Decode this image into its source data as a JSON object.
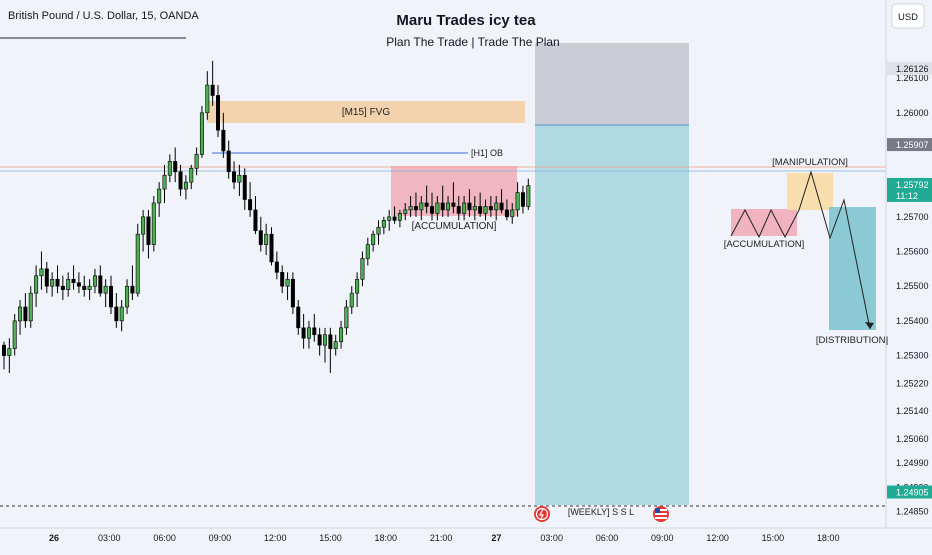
{
  "symbol_label": "British Pound / U.S. Dollar, 15, OANDA",
  "title": "Maru Trades icy tea",
  "subtitle": "Plan The Trade | Trade The Plan",
  "currency_button": "USD",
  "colors": {
    "background": "#f0f3fa",
    "up_candle": "#4caf50",
    "down_candle": "#000000",
    "fvg_zone": "#f2cda0",
    "accumulation_zone": "#f0a7b4",
    "manipulation_zone": "#f7dca3",
    "target_zone": "#a7d6e0",
    "stop_zone": "#c3c6cf",
    "price_tag_dark": "#787b86",
    "price_tag_green": "#22ab94"
  },
  "chart_data": {
    "type": "candlestick",
    "y_axis": {
      "ylim": [
        1.2482,
        1.2621
      ],
      "ticks": [
        "1.26100",
        "1.26000",
        "1.25700",
        "1.25600",
        "1.25500",
        "1.25400",
        "1.25300",
        "1.25220",
        "1.25140",
        "1.25060",
        "1.24990",
        "1.24920",
        "1.24850"
      ]
    },
    "x_axis": {
      "ticks": [
        "26",
        "03:00",
        "06:00",
        "09:00",
        "12:00",
        "15:00",
        "18:00",
        "21:00",
        "27",
        "03:00",
        "06:00",
        "09:00",
        "12:00",
        "15:00",
        "18:00"
      ],
      "bold": [
        "26",
        "27"
      ]
    },
    "price_tags": [
      {
        "label": "1.26126",
        "value": 1.26126,
        "style": "light"
      },
      {
        "label": "1.25907",
        "value": 1.25907,
        "style": "dark"
      },
      {
        "label": "1.25792",
        "sub": "11:12",
        "value": 1.25792,
        "style": "green"
      },
      {
        "label": "1.24905",
        "value": 1.24905,
        "style": "green"
      }
    ],
    "annotations": {
      "fvg": "[M15] FVG",
      "h1_ob": "[H1] OB",
      "accumulation": "[ACCUMULATION]",
      "weekly_ssl": "[WEEKLY]  S S L",
      "diagram_accumulation": "[ACCUMULATION]",
      "diagram_manipulation": "[MANIPULATION]",
      "diagram_distribution": "[DISTRIBUTION]"
    },
    "candles": [
      [
        1.2533,
        1.2534,
        1.2526,
        1.253
      ],
      [
        1.253,
        1.2535,
        1.2525,
        1.2532
      ],
      [
        1.2532,
        1.2542,
        1.253,
        1.254
      ],
      [
        1.254,
        1.2546,
        1.2536,
        1.2544
      ],
      [
        1.2544,
        1.2548,
        1.2538,
        1.254
      ],
      [
        1.254,
        1.255,
        1.2538,
        1.2548
      ],
      [
        1.2548,
        1.2556,
        1.2544,
        1.2553
      ],
      [
        1.2553,
        1.256,
        1.2549,
        1.2555
      ],
      [
        1.2555,
        1.2557,
        1.2548,
        1.255
      ],
      [
        1.255,
        1.2554,
        1.2547,
        1.2552
      ],
      [
        1.2552,
        1.2556,
        1.2548,
        1.255
      ],
      [
        1.255,
        1.2553,
        1.2546,
        1.2549
      ],
      [
        1.2549,
        1.2554,
        1.2547,
        1.2552
      ],
      [
        1.2552,
        1.2556,
        1.2549,
        1.2551
      ],
      [
        1.2551,
        1.2554,
        1.2548,
        1.255
      ],
      [
        1.255,
        1.2553,
        1.2547,
        1.2549
      ],
      [
        1.2549,
        1.2552,
        1.2546,
        1.255
      ],
      [
        1.255,
        1.2555,
        1.2548,
        1.2553
      ],
      [
        1.2553,
        1.2556,
        1.2547,
        1.2548
      ],
      [
        1.2548,
        1.2552,
        1.2544,
        1.255
      ],
      [
        1.255,
        1.2553,
        1.2542,
        1.2544
      ],
      [
        1.2544,
        1.2548,
        1.2538,
        1.254
      ],
      [
        1.254,
        1.2546,
        1.2537,
        1.2544
      ],
      [
        1.2544,
        1.2552,
        1.2542,
        1.255
      ],
      [
        1.255,
        1.2556,
        1.2546,
        1.2548
      ],
      [
        1.2548,
        1.2568,
        1.2547,
        1.2565
      ],
      [
        1.2565,
        1.2572,
        1.256,
        1.257
      ],
      [
        1.257,
        1.2572,
        1.2558,
        1.2562
      ],
      [
        1.2562,
        1.2576,
        1.256,
        1.2574
      ],
      [
        1.2574,
        1.258,
        1.257,
        1.2578
      ],
      [
        1.2578,
        1.2585,
        1.2574,
        1.2582
      ],
      [
        1.2582,
        1.2588,
        1.258,
        1.2586
      ],
      [
        1.2586,
        1.259,
        1.258,
        1.2583
      ],
      [
        1.2583,
        1.2585,
        1.2576,
        1.2578
      ],
      [
        1.2578,
        1.2582,
        1.2575,
        1.258
      ],
      [
        1.258,
        1.2585,
        1.2578,
        1.2584
      ],
      [
        1.2584,
        1.259,
        1.2582,
        1.2588
      ],
      [
        1.2588,
        1.2602,
        1.2587,
        1.26
      ],
      [
        1.26,
        1.2612,
        1.2598,
        1.2608
      ],
      [
        1.2608,
        1.2615,
        1.2602,
        1.2605
      ],
      [
        1.2605,
        1.2608,
        1.2593,
        1.2595
      ],
      [
        1.2595,
        1.26,
        1.2587,
        1.2589
      ],
      [
        1.2589,
        1.2592,
        1.2581,
        1.2583
      ],
      [
        1.2583,
        1.2586,
        1.2578,
        1.258
      ],
      [
        1.258,
        1.2585,
        1.2576,
        1.2582
      ],
      [
        1.2582,
        1.2584,
        1.2572,
        1.2575
      ],
      [
        1.2575,
        1.258,
        1.257,
        1.2572
      ],
      [
        1.2572,
        1.2576,
        1.2565,
        1.2566
      ],
      [
        1.2566,
        1.257,
        1.256,
        1.2562
      ],
      [
        1.2562,
        1.2568,
        1.2559,
        1.2565
      ],
      [
        1.2565,
        1.2567,
        1.2556,
        1.2557
      ],
      [
        1.2557,
        1.256,
        1.2552,
        1.2554
      ],
      [
        1.2554,
        1.2556,
        1.2548,
        1.255
      ],
      [
        1.255,
        1.2554,
        1.2546,
        1.2552
      ],
      [
        1.2552,
        1.2554,
        1.2542,
        1.2544
      ],
      [
        1.2544,
        1.2546,
        1.2536,
        1.2538
      ],
      [
        1.2538,
        1.2542,
        1.2532,
        1.2535
      ],
      [
        1.2535,
        1.254,
        1.2532,
        1.2538
      ],
      [
        1.2538,
        1.2542,
        1.2534,
        1.2536
      ],
      [
        1.2536,
        1.2538,
        1.253,
        1.2533
      ],
      [
        1.2533,
        1.2538,
        1.2528,
        1.2536
      ],
      [
        1.2536,
        1.2538,
        1.2525,
        1.2532
      ],
      [
        1.2532,
        1.2536,
        1.253,
        1.2534
      ],
      [
        1.2534,
        1.254,
        1.2532,
        1.2538
      ],
      [
        1.2538,
        1.2546,
        1.2536,
        1.2544
      ],
      [
        1.2544,
        1.255,
        1.2542,
        1.2548
      ],
      [
        1.2548,
        1.2554,
        1.2544,
        1.2552
      ],
      [
        1.2552,
        1.256,
        1.255,
        1.2558
      ],
      [
        1.2558,
        1.2564,
        1.2556,
        1.2562
      ],
      [
        1.2562,
        1.2566,
        1.256,
        1.2565
      ],
      [
        1.2565,
        1.2569,
        1.2562,
        1.2567
      ],
      [
        1.2567,
        1.257,
        1.2565,
        1.2569
      ],
      [
        1.2569,
        1.2572,
        1.2566,
        1.257
      ],
      [
        1.257,
        1.2573,
        1.2568,
        1.2569
      ],
      [
        1.2569,
        1.2572,
        1.2567,
        1.2571
      ],
      [
        1.2571,
        1.2574,
        1.2569,
        1.2572
      ],
      [
        1.2572,
        1.2576,
        1.257,
        1.2573
      ],
      [
        1.2573,
        1.2577,
        1.257,
        1.2572
      ],
      [
        1.2572,
        1.2576,
        1.2569,
        1.2574
      ],
      [
        1.2574,
        1.2579,
        1.2571,
        1.2573
      ],
      [
        1.2573,
        1.2577,
        1.2569,
        1.2571
      ],
      [
        1.2571,
        1.2576,
        1.2569,
        1.2574
      ],
      [
        1.2574,
        1.2579,
        1.257,
        1.2572
      ],
      [
        1.2572,
        1.2576,
        1.257,
        1.2574
      ],
      [
        1.2574,
        1.258,
        1.2571,
        1.2573
      ],
      [
        1.2573,
        1.2576,
        1.2569,
        1.2571
      ],
      [
        1.2571,
        1.2576,
        1.2569,
        1.2574
      ],
      [
        1.2574,
        1.2578,
        1.257,
        1.2572
      ],
      [
        1.2572,
        1.2576,
        1.2569,
        1.2573
      ],
      [
        1.2573,
        1.2577,
        1.257,
        1.2571
      ],
      [
        1.2571,
        1.2575,
        1.2569,
        1.2573
      ],
      [
        1.2573,
        1.2576,
        1.257,
        1.2572
      ],
      [
        1.2572,
        1.2576,
        1.2569,
        1.2574
      ],
      [
        1.2574,
        1.2578,
        1.2571,
        1.2572
      ],
      [
        1.2572,
        1.2575,
        1.2569,
        1.257
      ],
      [
        1.257,
        1.2574,
        1.2568,
        1.2572
      ],
      [
        1.2572,
        1.258,
        1.257,
        1.2577
      ],
      [
        1.2577,
        1.2579,
        1.2571,
        1.2573
      ],
      [
        1.2573,
        1.2581,
        1.2572,
        1.2579
      ]
    ]
  }
}
